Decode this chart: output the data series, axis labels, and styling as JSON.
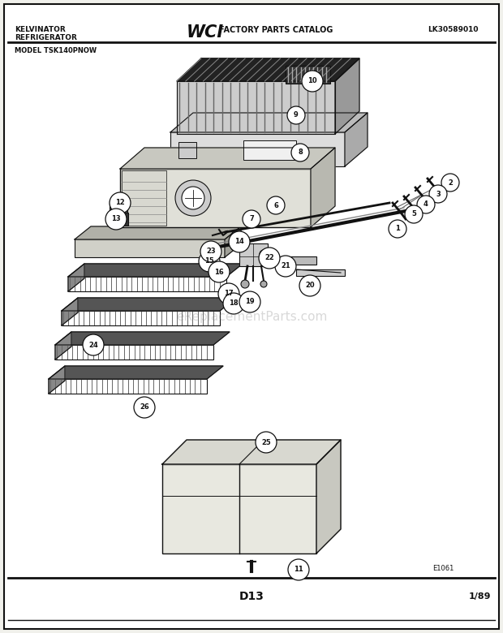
{
  "bg_color": "#f0f0eb",
  "inner_bg": "#ffffff",
  "border_color": "#111111",
  "text_color": "#111111",
  "header": {
    "left_line1": "KELVINATOR",
    "left_line2": "REFRIGERATOR",
    "center_logo": "WCI",
    "center_text": "FACTORY PARTS CATALOG",
    "right_text": "LK30589010"
  },
  "model_text": "MODEL TSK140PNOW",
  "footer_left": "E1061",
  "footer_center": "D13",
  "footer_right": "1/89",
  "watermark": "eReplacementParts.com"
}
